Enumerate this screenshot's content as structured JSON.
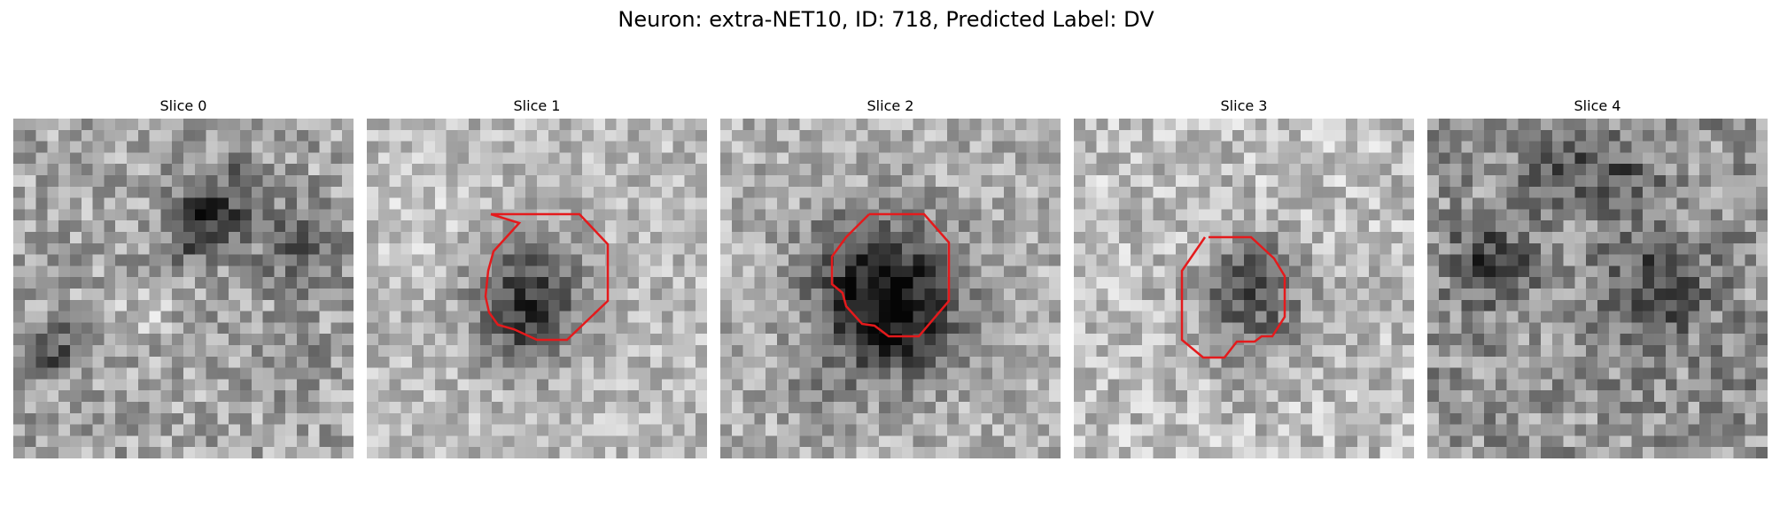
{
  "figure": {
    "title": "Neuron: extra-NET10, ID: 718, Predicted Label: DV"
  },
  "outline_color": "#e41a1c",
  "panels": [
    {
      "title": "Slice 0",
      "blobs": [],
      "has_roi": false
    },
    {
      "title": "Slice 1",
      "has_roi": true
    },
    {
      "title": "Slice 2",
      "has_roi": true
    },
    {
      "title": "Slice 3",
      "has_roi": true
    },
    {
      "title": "Slice 4",
      "has_roi": false
    }
  ]
}
